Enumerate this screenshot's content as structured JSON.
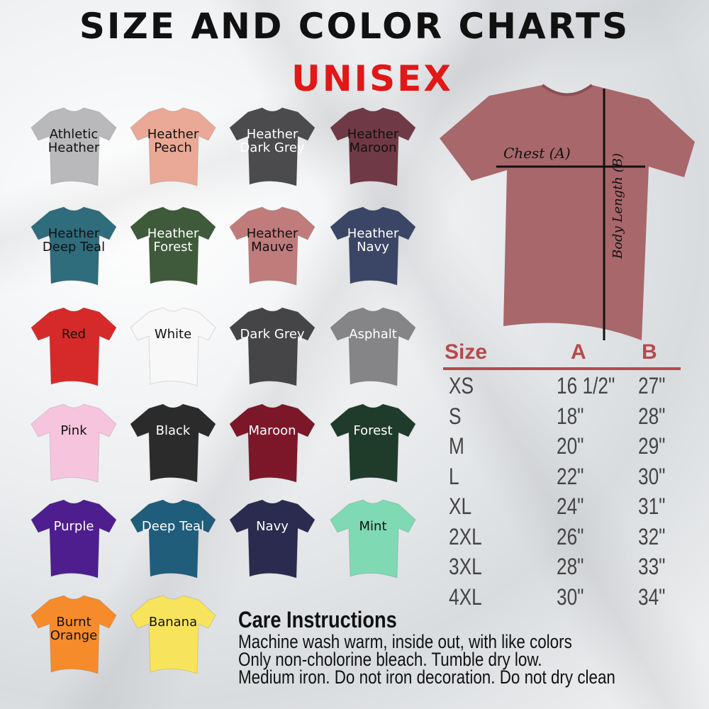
{
  "header": {
    "title": "SIZE AND COLOR CHARTS",
    "subtitle": "UNISEX"
  },
  "colors": [
    {
      "name": "Athletic Heather",
      "hex": "#b9b9bb",
      "text": "#111111"
    },
    {
      "name": "Heather Peach",
      "hex": "#e9a996",
      "text": "#111111"
    },
    {
      "name": "Heather Dark Grey",
      "hex": "#4b4b4e",
      "text": "#ffffff"
    },
    {
      "name": "Heather Maroon",
      "hex": "#6f3a45",
      "text": "#111111"
    },
    {
      "name": "Heather Deep Teal",
      "hex": "#2f6c7c",
      "text": "#111111"
    },
    {
      "name": "Heather Forest",
      "hex": "#3e5a3a",
      "text": "#ffffff"
    },
    {
      "name": "Heather Mauve",
      "hex": "#c07b7b",
      "text": "#111111"
    },
    {
      "name": "Heather Navy",
      "hex": "#3b4565",
      "text": "#ffffff"
    },
    {
      "name": "Red",
      "hex": "#d62a2a",
      "text": "#111111"
    },
    {
      "name": "White",
      "hex": "#f8f8f8",
      "text": "#111111"
    },
    {
      "name": "Dark Grey",
      "hex": "#454547",
      "text": "#ffffff"
    },
    {
      "name": "Asphalt",
      "hex": "#858587",
      "text": "#ffffff"
    },
    {
      "name": "Pink",
      "hex": "#f6c5dd",
      "text": "#111111"
    },
    {
      "name": "Black",
      "hex": "#2b2b2b",
      "text": "#ffffff"
    },
    {
      "name": "Maroon",
      "hex": "#7c1729",
      "text": "#ffffff"
    },
    {
      "name": "Forest",
      "hex": "#1f3c2a",
      "text": "#ffffff"
    },
    {
      "name": "Purple",
      "hex": "#4f1e8e",
      "text": "#ffffff"
    },
    {
      "name": "Deep Teal",
      "hex": "#1f5d7b",
      "text": "#ffffff"
    },
    {
      "name": "Navy",
      "hex": "#2b2b50",
      "text": "#ffffff"
    },
    {
      "name": "Mint",
      "hex": "#7fd9b2",
      "text": "#111111"
    },
    {
      "name": "Burnt Orange",
      "hex": "#f68b2b",
      "text": "#111111"
    },
    {
      "name": "Banana",
      "hex": "#f8e45c",
      "text": "#111111"
    }
  ],
  "diagram": {
    "shirt_color": "#a8676b",
    "chest_label": "Chest (A)",
    "length_label": "Body Length (B)"
  },
  "size_table": {
    "headers": [
      "Size",
      "A",
      "B"
    ],
    "rows": [
      [
        "XS",
        "16 1/2\"",
        "27\""
      ],
      [
        "S",
        "18\"",
        "28\""
      ],
      [
        "M",
        "20\"",
        "29\""
      ],
      [
        "L",
        "22\"",
        "30\""
      ],
      [
        "XL",
        "24\"",
        "31\""
      ],
      [
        "2XL",
        "26\"",
        "32\""
      ],
      [
        "3XL",
        "28\"",
        "33\""
      ],
      [
        "4XL",
        "30\"",
        "34\""
      ]
    ]
  },
  "care": {
    "title": "Care Instructions",
    "lines": [
      "Machine wash warm, inside out, with like colors",
      "Only non-cholorine bleach. Tumble dry low.",
      "Medium iron. Do not iron decoration. Do not dry clean"
    ]
  }
}
